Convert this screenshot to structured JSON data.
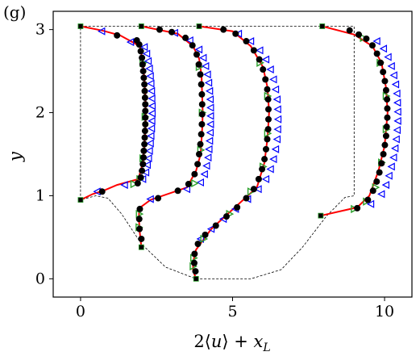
{
  "panel_label": "(g)",
  "chart_data": {
    "type": "line",
    "title": "",
    "xlabel": "2⟨u⟩ + x_L",
    "ylabel": "y",
    "xlim": [
      -0.9,
      10.9
    ],
    "ylim": [
      -0.22,
      3.22
    ],
    "xticks": [
      0,
      5,
      10
    ],
    "yticks": [
      0,
      1,
      2,
      3
    ],
    "grid": false,
    "legend": "none",
    "colors": {
      "reference": "#ff0000",
      "marker_a": "#000000",
      "marker_b": "#2ca02c",
      "marker_c": "#0000ff",
      "boundary": "#000000"
    },
    "domain_outline": [
      [
        0,
        0.95
      ],
      [
        0,
        3.04
      ],
      [
        9.0,
        3.04
      ],
      [
        9.0,
        1.0
      ],
      [
        8.7,
        0.98
      ],
      [
        8.1,
        0.76
      ],
      [
        7.3,
        0.38
      ],
      [
        6.6,
        0.11
      ],
      [
        5.6,
        0.0
      ],
      [
        3.8,
        0.0
      ],
      [
        2.8,
        0.14
      ],
      [
        2.0,
        0.42
      ],
      [
        1.35,
        0.78
      ],
      [
        0.9,
        0.97
      ],
      [
        0.5,
        1.0
      ],
      [
        0,
        0.95
      ]
    ],
    "profiles": [
      {
        "x_L": 0,
        "reference": [
          [
            0,
            0.95
          ],
          [
            0.4,
            1.02
          ],
          [
            0.75,
            1.06
          ],
          [
            1.2,
            1.13
          ],
          [
            1.9,
            1.2
          ],
          [
            2.05,
            1.4
          ],
          [
            2.1,
            1.6
          ],
          [
            2.13,
            1.8
          ],
          [
            2.14,
            2.0
          ],
          [
            2.13,
            2.2
          ],
          [
            2.1,
            2.4
          ],
          [
            2.05,
            2.6
          ],
          [
            1.95,
            2.8
          ],
          [
            1.3,
            2.93
          ],
          [
            0.7,
            2.99
          ],
          [
            0,
            3.04
          ]
        ],
        "circles": [
          [
            0.71,
            1.05
          ],
          [
            1.88,
            1.15
          ],
          [
            1.98,
            1.22
          ],
          [
            2.02,
            1.3
          ],
          [
            2.05,
            1.38
          ],
          [
            2.07,
            1.46
          ],
          [
            2.08,
            1.54
          ],
          [
            2.1,
            1.62
          ],
          [
            2.11,
            1.7
          ],
          [
            2.12,
            1.78
          ],
          [
            2.13,
            1.86
          ],
          [
            2.13,
            1.94
          ],
          [
            2.13,
            2.02
          ],
          [
            2.13,
            2.1
          ],
          [
            2.12,
            2.18
          ],
          [
            2.11,
            2.26
          ],
          [
            2.1,
            2.34
          ],
          [
            2.08,
            2.42
          ],
          [
            2.06,
            2.5
          ],
          [
            2.04,
            2.58
          ],
          [
            2.02,
            2.66
          ],
          [
            1.98,
            2.74
          ],
          [
            1.93,
            2.82
          ],
          [
            1.85,
            2.87
          ],
          [
            1.2,
            2.93
          ]
        ],
        "triangles_green": [
          [
            1.75,
            1.14
          ],
          [
            1.95,
            1.2
          ],
          [
            2.05,
            1.45
          ],
          [
            2.12,
            1.95
          ],
          [
            2.05,
            2.6
          ]
        ],
        "triangles_blue": [
          [
            0.55,
            1.05
          ],
          [
            1.45,
            1.13
          ],
          [
            2.05,
            1.2
          ],
          [
            2.15,
            1.28
          ],
          [
            2.2,
            1.37
          ],
          [
            2.24,
            1.45
          ],
          [
            2.27,
            1.54
          ],
          [
            2.3,
            1.63
          ],
          [
            2.32,
            1.72
          ],
          [
            2.34,
            1.81
          ],
          [
            2.35,
            1.9
          ],
          [
            2.36,
            1.99
          ],
          [
            2.36,
            2.08
          ],
          [
            2.35,
            2.17
          ],
          [
            2.34,
            2.26
          ],
          [
            2.32,
            2.35
          ],
          [
            2.3,
            2.44
          ],
          [
            2.27,
            2.53
          ],
          [
            2.23,
            2.62
          ],
          [
            2.18,
            2.71
          ],
          [
            2.1,
            2.79
          ],
          [
            1.65,
            2.85
          ],
          [
            0.7,
            2.98
          ]
        ],
        "squares": [
          [
            0,
            0.95
          ],
          [
            0,
            3.04
          ]
        ]
      },
      {
        "x_L": 2,
        "reference": [
          [
            2,
            0.38
          ],
          [
            1.95,
            0.55
          ],
          [
            1.92,
            0.72
          ],
          [
            1.93,
            0.85
          ],
          [
            2.3,
            0.95
          ],
          [
            3.5,
            1.1
          ],
          [
            3.8,
            1.3
          ],
          [
            3.95,
            1.5
          ],
          [
            4.0,
            1.8
          ],
          [
            4.02,
            2.0
          ],
          [
            4.0,
            2.2
          ],
          [
            3.98,
            2.45
          ],
          [
            3.9,
            2.65
          ],
          [
            3.7,
            2.8
          ],
          [
            3.2,
            2.95
          ],
          [
            2.0,
            3.04
          ]
        ],
        "circles": [
          [
            2.0,
            0.48
          ],
          [
            1.94,
            0.6
          ],
          [
            1.93,
            0.72
          ],
          [
            1.95,
            0.84
          ],
          [
            2.55,
            0.97
          ],
          [
            3.2,
            1.06
          ],
          [
            3.55,
            1.14
          ],
          [
            3.75,
            1.26
          ],
          [
            3.85,
            1.38
          ],
          [
            3.9,
            1.5
          ],
          [
            3.94,
            1.62
          ],
          [
            3.97,
            1.74
          ],
          [
            3.99,
            1.86
          ],
          [
            4.0,
            1.98
          ],
          [
            4.0,
            2.1
          ],
          [
            3.99,
            2.22
          ],
          [
            3.97,
            2.34
          ],
          [
            3.94,
            2.46
          ],
          [
            3.89,
            2.58
          ],
          [
            3.82,
            2.7
          ],
          [
            3.68,
            2.81
          ],
          [
            3.45,
            2.9
          ],
          [
            3.0,
            2.97
          ],
          [
            2.6,
            3.0
          ]
        ],
        "triangles_green": [
          [
            1.92,
            0.62
          ],
          [
            1.93,
            0.78
          ],
          [
            3.75,
            1.15
          ],
          [
            3.95,
            1.55
          ],
          [
            4.0,
            2.0
          ],
          [
            3.9,
            2.55
          ]
        ],
        "triangles_blue": [
          [
            2.3,
            0.96
          ],
          [
            3.5,
            1.08
          ],
          [
            3.95,
            1.16
          ],
          [
            4.08,
            1.26
          ],
          [
            4.15,
            1.36
          ],
          [
            4.2,
            1.46
          ],
          [
            4.23,
            1.56
          ],
          [
            4.25,
            1.66
          ],
          [
            4.27,
            1.76
          ],
          [
            4.28,
            1.86
          ],
          [
            4.28,
            1.96
          ],
          [
            4.28,
            2.06
          ],
          [
            4.27,
            2.16
          ],
          [
            4.25,
            2.26
          ],
          [
            4.22,
            2.36
          ],
          [
            4.18,
            2.46
          ],
          [
            4.12,
            2.56
          ],
          [
            4.04,
            2.66
          ],
          [
            3.9,
            2.76
          ],
          [
            3.6,
            2.87
          ],
          [
            3.1,
            2.96
          ]
        ],
        "squares": [
          [
            2,
            0.38
          ],
          [
            2,
            3.04
          ]
        ]
      },
      {
        "x_L": 3.8,
        "reference": [
          [
            3.8,
            0.0
          ],
          [
            3.7,
            0.1
          ],
          [
            3.7,
            0.2
          ],
          [
            3.8,
            0.35
          ],
          [
            4.3,
            0.6
          ],
          [
            5.2,
            0.9
          ],
          [
            5.8,
            1.1
          ],
          [
            6.05,
            1.4
          ],
          [
            6.15,
            1.7
          ],
          [
            6.2,
            2.0
          ],
          [
            6.15,
            2.3
          ],
          [
            6.0,
            2.55
          ],
          [
            5.6,
            2.8
          ],
          [
            5.0,
            2.98
          ],
          [
            3.9,
            3.04
          ]
        ],
        "circles": [
          [
            3.78,
            0.09
          ],
          [
            3.74,
            0.19
          ],
          [
            3.75,
            0.3
          ],
          [
            3.86,
            0.42
          ],
          [
            4.1,
            0.53
          ],
          [
            4.45,
            0.64
          ],
          [
            4.8,
            0.75
          ],
          [
            5.15,
            0.86
          ],
          [
            5.45,
            0.97
          ],
          [
            5.7,
            1.08
          ],
          [
            5.86,
            1.2
          ],
          [
            5.97,
            1.32
          ],
          [
            6.05,
            1.44
          ],
          [
            6.1,
            1.56
          ],
          [
            6.14,
            1.68
          ],
          [
            6.17,
            1.8
          ],
          [
            6.18,
            1.92
          ],
          [
            6.18,
            2.04
          ],
          [
            6.17,
            2.16
          ],
          [
            6.14,
            2.28
          ],
          [
            6.08,
            2.4
          ],
          [
            6.0,
            2.52
          ],
          [
            5.88,
            2.64
          ],
          [
            5.7,
            2.75
          ],
          [
            5.45,
            2.86
          ],
          [
            5.1,
            2.95
          ],
          [
            4.7,
            3.0
          ]
        ],
        "triangles_green": [
          [
            3.7,
            0.15
          ],
          [
            3.72,
            0.25
          ],
          [
            4.05,
            0.48
          ],
          [
            4.9,
            0.78
          ],
          [
            5.6,
            1.05
          ],
          [
            6.0,
            1.35
          ],
          [
            6.15,
            1.75
          ],
          [
            6.15,
            2.2
          ],
          [
            5.9,
            2.6
          ]
        ],
        "triangles_blue": [
          [
            3.95,
            0.48
          ],
          [
            4.3,
            0.6
          ],
          [
            4.7,
            0.72
          ],
          [
            5.1,
            0.84
          ],
          [
            5.5,
            0.96
          ],
          [
            5.85,
            1.08
          ],
          [
            6.1,
            1.2
          ],
          [
            6.25,
            1.32
          ],
          [
            6.35,
            1.44
          ],
          [
            6.42,
            1.56
          ],
          [
            6.47,
            1.68
          ],
          [
            6.49,
            1.8
          ],
          [
            6.5,
            1.92
          ],
          [
            6.49,
            2.04
          ],
          [
            6.47,
            2.16
          ],
          [
            6.42,
            2.28
          ],
          [
            6.35,
            2.4
          ],
          [
            6.25,
            2.52
          ],
          [
            6.1,
            2.64
          ],
          [
            5.9,
            2.75
          ],
          [
            5.6,
            2.86
          ],
          [
            5.2,
            2.95
          ]
        ],
        "squares": [
          [
            3.8,
            0.0
          ],
          [
            3.9,
            3.04
          ]
        ]
      },
      {
        "x_L": 7.9,
        "reference": [
          [
            7.9,
            0.76
          ],
          [
            9.1,
            0.86
          ],
          [
            9.5,
            1.0
          ],
          [
            9.8,
            1.3
          ],
          [
            10.0,
            1.6
          ],
          [
            10.1,
            2.0
          ],
          [
            10.05,
            2.3
          ],
          [
            9.9,
            2.6
          ],
          [
            9.6,
            2.8
          ],
          [
            9.0,
            2.94
          ],
          [
            7.95,
            3.04
          ]
        ],
        "circles": [
          [
            9.1,
            0.85
          ],
          [
            9.45,
            0.95
          ],
          [
            9.62,
            1.06
          ],
          [
            9.74,
            1.17
          ],
          [
            9.83,
            1.28
          ],
          [
            9.9,
            1.39
          ],
          [
            9.96,
            1.5
          ],
          [
            10.01,
            1.61
          ],
          [
            10.05,
            1.72
          ],
          [
            10.07,
            1.83
          ],
          [
            10.09,
            1.94
          ],
          [
            10.09,
            2.05
          ],
          [
            10.08,
            2.16
          ],
          [
            10.05,
            2.27
          ],
          [
            10.01,
            2.38
          ],
          [
            9.95,
            2.49
          ],
          [
            9.87,
            2.6
          ],
          [
            9.75,
            2.71
          ],
          [
            9.6,
            2.81
          ],
          [
            9.4,
            2.89
          ],
          [
            9.15,
            2.94
          ],
          [
            8.85,
            2.99
          ]
        ],
        "triangles_green": [
          [
            9.0,
            0.84
          ],
          [
            9.4,
            0.93
          ],
          [
            9.7,
            1.1
          ],
          [
            9.9,
            1.4
          ],
          [
            10.05,
            1.8
          ],
          [
            10.05,
            2.2
          ],
          [
            9.85,
            2.6
          ],
          [
            9.3,
            2.9
          ]
        ],
        "triangles_blue": [
          [
            9.55,
            0.9
          ],
          [
            9.9,
            1.02
          ],
          [
            10.05,
            1.13
          ],
          [
            10.15,
            1.24
          ],
          [
            10.23,
            1.35
          ],
          [
            10.3,
            1.46
          ],
          [
            10.35,
            1.57
          ],
          [
            10.39,
            1.68
          ],
          [
            10.42,
            1.79
          ],
          [
            10.44,
            1.9
          ],
          [
            10.44,
            2.01
          ],
          [
            10.43,
            2.12
          ],
          [
            10.41,
            2.23
          ],
          [
            10.37,
            2.34
          ],
          [
            10.31,
            2.45
          ],
          [
            10.23,
            2.56
          ],
          [
            10.12,
            2.67
          ],
          [
            9.97,
            2.77
          ],
          [
            9.75,
            2.86
          ]
        ],
        "squares": [
          [
            7.9,
            0.76
          ],
          [
            7.95,
            3.04
          ]
        ]
      }
    ]
  }
}
